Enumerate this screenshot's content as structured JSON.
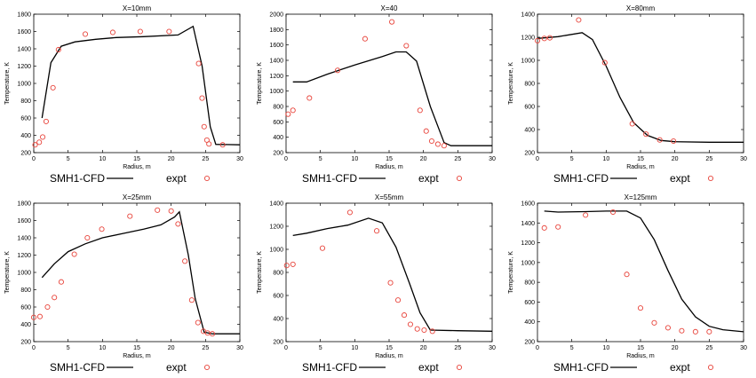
{
  "colors": {
    "cfd_line": "#000000",
    "expt_marker": "#e8453c",
    "axis": "#000000"
  },
  "legend": {
    "cfd_label": "SMH1-CFD",
    "expt_label": "expt"
  },
  "chart_data": [
    {
      "type": "line",
      "title": "X=10mm",
      "xlabel": "Radius, m",
      "ylabel": "Temperature, K",
      "xlim": [
        0,
        30
      ],
      "ylim": [
        200,
        1800
      ],
      "xticks": [
        0,
        5,
        10,
        15,
        20,
        25,
        30
      ],
      "yticks": [
        200,
        400,
        600,
        800,
        1000,
        1200,
        1400,
        1600,
        1800
      ],
      "series": [
        {
          "name": "SMH1-CFD",
          "kind": "line",
          "x": [
            1.2,
            2.5,
            4,
            6,
            9,
            12,
            16,
            21,
            23.2,
            24.5,
            25.7,
            26.5,
            30
          ],
          "y": [
            600,
            1240,
            1430,
            1480,
            1510,
            1530,
            1540,
            1560,
            1660,
            1200,
            500,
            295,
            290
          ]
        },
        {
          "name": "expt",
          "kind": "scatter",
          "x": [
            0.2,
            0.8,
            1.3,
            1.8,
            2.8,
            3.6,
            7.5,
            11.5,
            15.5,
            19.7,
            24,
            24.5,
            24.8,
            25.2,
            25.5,
            27.5
          ],
          "y": [
            290,
            320,
            380,
            560,
            950,
            1390,
            1570,
            1590,
            1600,
            1600,
            1230,
            830,
            500,
            345,
            300,
            290
          ]
        }
      ]
    },
    {
      "type": "line",
      "title": "X=40",
      "xlabel": "Radius, m",
      "ylabel": "Temperature, K",
      "xlim": [
        0,
        30
      ],
      "ylim": [
        200,
        2000
      ],
      "xticks": [
        0,
        5,
        10,
        15,
        20,
        25,
        30
      ],
      "yticks": [
        200,
        400,
        600,
        800,
        1000,
        1200,
        1400,
        1600,
        1800,
        2000
      ],
      "series": [
        {
          "name": "SMH1-CFD",
          "kind": "line",
          "x": [
            1,
            3,
            6,
            10,
            14,
            16,
            17.5,
            19,
            21,
            23,
            24,
            30
          ],
          "y": [
            1120,
            1120,
            1220,
            1340,
            1450,
            1510,
            1510,
            1390,
            800,
            330,
            290,
            290
          ]
        },
        {
          "name": "expt",
          "kind": "scatter",
          "x": [
            0.3,
            1,
            3.4,
            7.5,
            11.5,
            15.4,
            17.5,
            19.5,
            20.4,
            21.2,
            22.1,
            23
          ],
          "y": [
            700,
            750,
            910,
            1270,
            1680,
            1900,
            1590,
            750,
            480,
            350,
            310,
            290
          ]
        }
      ]
    },
    {
      "type": "line",
      "title": "X=80mm",
      "xlabel": "Radius, m",
      "ylabel": "Temperature, K",
      "xlim": [
        0,
        30
      ],
      "ylim": [
        200,
        1400
      ],
      "xticks": [
        0,
        5,
        10,
        15,
        20,
        25,
        30
      ],
      "yticks": [
        200,
        400,
        600,
        800,
        1000,
        1200,
        1400
      ],
      "series": [
        {
          "name": "SMH1-CFD",
          "kind": "line",
          "x": [
            0,
            3,
            6.5,
            8,
            10,
            12,
            14,
            16,
            18,
            20,
            25,
            30
          ],
          "y": [
            1190,
            1205,
            1240,
            1180,
            950,
            680,
            460,
            350,
            305,
            295,
            290,
            290
          ]
        },
        {
          "name": "expt",
          "kind": "scatter",
          "x": [
            0,
            1,
            1.8,
            6,
            9.8,
            13.8,
            15.8,
            17.8,
            19.8
          ],
          "y": [
            1170,
            1190,
            1195,
            1350,
            980,
            450,
            360,
            310,
            300
          ]
        }
      ]
    },
    {
      "type": "line",
      "title": "X=25mm",
      "xlabel": "Radius, m",
      "ylabel": "Temperature, K",
      "xlim": [
        0,
        30
      ],
      "ylim": [
        200,
        1800
      ],
      "xticks": [
        0,
        5,
        10,
        15,
        20,
        25,
        30
      ],
      "yticks": [
        200,
        400,
        600,
        800,
        1000,
        1200,
        1400,
        1600,
        1800
      ],
      "series": [
        {
          "name": "SMH1-CFD",
          "kind": "line",
          "x": [
            1.2,
            3,
            5,
            7.5,
            10,
            13,
            16,
            18.5,
            20.5,
            21.2,
            22.5,
            23.5,
            24.8,
            26,
            30
          ],
          "y": [
            940,
            1100,
            1240,
            1330,
            1400,
            1450,
            1500,
            1550,
            1640,
            1700,
            1200,
            700,
            310,
            290,
            290
          ]
        },
        {
          "name": "expt",
          "kind": "scatter",
          "x": [
            0,
            0.9,
            2,
            3,
            4,
            5.9,
            7.8,
            9.9,
            14,
            18,
            20,
            21,
            22,
            23,
            23.9,
            24.7,
            25.3,
            26
          ],
          "y": [
            480,
            490,
            600,
            710,
            890,
            1210,
            1400,
            1500,
            1650,
            1720,
            1710,
            1560,
            1130,
            680,
            420,
            320,
            300,
            290
          ]
        }
      ]
    },
    {
      "type": "line",
      "title": "X=55mm",
      "xlabel": "Radius, m",
      "ylabel": "Temperature, K",
      "xlim": [
        0,
        30
      ],
      "ylim": [
        200,
        1400
      ],
      "xticks": [
        0,
        5,
        10,
        15,
        20,
        25,
        30
      ],
      "yticks": [
        200,
        400,
        600,
        800,
        1000,
        1200,
        1400
      ],
      "series": [
        {
          "name": "SMH1-CFD",
          "kind": "line",
          "x": [
            1,
            3,
            6,
            9,
            12,
            14,
            16,
            18,
            19.5,
            21,
            25,
            30
          ],
          "y": [
            1120,
            1140,
            1180,
            1210,
            1270,
            1230,
            1020,
            700,
            450,
            300,
            295,
            290
          ]
        },
        {
          "name": "expt",
          "kind": "scatter",
          "x": [
            0.1,
            1,
            5.3,
            9.3,
            13.2,
            15.2,
            16.3,
            17.2,
            18.1,
            19.1,
            20.1,
            21.3
          ],
          "y": [
            860,
            870,
            1010,
            1320,
            1160,
            710,
            560,
            430,
            350,
            310,
            300,
            290
          ]
        }
      ]
    },
    {
      "type": "line",
      "title": "X=125mm",
      "xlabel": "Radius, m",
      "ylabel": "Temperature, K",
      "xlim": [
        0,
        30
      ],
      "ylim": [
        200,
        1600
      ],
      "xticks": [
        0,
        5,
        10,
        15,
        20,
        25,
        30
      ],
      "yticks": [
        200,
        400,
        600,
        800,
        1000,
        1200,
        1400,
        1600
      ],
      "series": [
        {
          "name": "SMH1-CFD",
          "kind": "line",
          "x": [
            1,
            3,
            7,
            10,
            13,
            15,
            17,
            19,
            21,
            23,
            25,
            27,
            30
          ],
          "y": [
            1520,
            1510,
            1515,
            1520,
            1520,
            1450,
            1230,
            920,
            630,
            450,
            355,
            320,
            300
          ]
        },
        {
          "name": "expt",
          "kind": "scatter",
          "x": [
            1,
            3,
            7,
            11,
            13,
            15,
            17,
            19,
            21,
            23,
            25
          ],
          "y": [
            1350,
            1360,
            1480,
            1510,
            880,
            540,
            390,
            340,
            310,
            300,
            300
          ]
        }
      ]
    }
  ]
}
